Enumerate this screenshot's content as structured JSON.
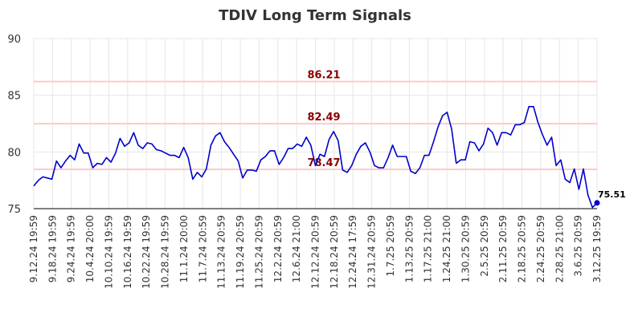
{
  "chart_data": {
    "type": "line",
    "title": "TDIV Long Term Signals",
    "xlabel": "",
    "ylabel": "",
    "ylim": [
      75,
      90
    ],
    "yticks": [
      75,
      80,
      85,
      90
    ],
    "grid": true,
    "x_tick_labels": [
      "9.12.24 19:59",
      "9.18.24 19:59",
      "9.24.24 19:59",
      "10.4.24 20:00",
      "10.10.24 19:59",
      "10.16.24 19:59",
      "10.22.24 19:59",
      "10.28.24 19:59",
      "11.1.24 20:00",
      "11.7.24 20:59",
      "11.13.24 20:59",
      "11.19.24 20:59",
      "11.25.24 20:59",
      "12.2.24 20:59",
      "12.6.24 21:00",
      "12.12.24 20:59",
      "12.18.24 20:59",
      "12.24.24 17:59",
      "12.31.24 20:59",
      "1.7.25 20:59",
      "1.13.25 20:59",
      "1.17.25 21:00",
      "1.24.25 21:00",
      "1.30.25 20:59",
      "2.5.25 20:59",
      "2.11.25 20:59",
      "2.18.25 20:59",
      "2.24.25 20:59",
      "2.28.25 21:00",
      "3.6.25 20:59",
      "3.12.25 19:59"
    ],
    "reference_lines": [
      {
        "value": 86.21,
        "label": "86.21",
        "color": "#ffc8c8"
      },
      {
        "value": 82.49,
        "label": "82.49",
        "color": "#ffc8c8"
      },
      {
        "value": 78.47,
        "label": "78.47",
        "color": "#ffc8c8"
      }
    ],
    "series": [
      {
        "color": "#0000cc",
        "values": [
          77.0,
          77.5,
          77.8,
          77.7,
          77.6,
          79.2,
          78.6,
          79.2,
          79.7,
          79.3,
          80.7,
          79.9,
          79.9,
          78.6,
          79.0,
          78.9,
          79.5,
          79.1,
          79.9,
          81.2,
          80.5,
          80.8,
          81.7,
          80.6,
          80.3,
          80.8,
          80.7,
          80.2,
          80.1,
          79.9,
          79.7,
          79.7,
          79.5,
          80.4,
          79.5,
          77.6,
          78.2,
          77.8,
          78.5,
          80.6,
          81.4,
          81.7,
          80.9,
          80.4,
          79.8,
          79.2,
          77.7,
          78.4,
          78.4,
          78.3,
          79.3,
          79.6,
          80.1,
          80.1,
          78.9,
          79.5,
          80.3,
          80.3,
          80.7,
          80.5,
          81.3,
          80.6,
          78.8,
          79.8,
          79.6,
          81.1,
          81.8,
          81.0,
          78.4,
          78.2,
          78.8,
          79.8,
          80.5,
          80.8,
          80.0,
          78.8,
          78.6,
          78.6,
          79.5,
          80.6,
          79.6,
          79.6,
          79.6,
          78.3,
          78.1,
          78.6,
          79.7,
          79.7,
          80.9,
          82.2,
          83.2,
          83.5,
          82.0,
          79.0,
          79.3,
          79.3,
          80.9,
          80.8,
          80.1,
          80.7,
          82.1,
          81.7,
          80.6,
          81.7,
          81.7,
          81.5,
          82.4,
          82.4,
          82.6,
          84.0,
          84.0,
          82.6,
          81.5,
          80.6,
          81.3,
          78.8,
          79.3,
          77.6,
          77.3,
          78.5,
          76.7,
          78.5,
          76.2,
          75.1,
          75.51
        ]
      }
    ],
    "last_value_label": "75.51"
  }
}
